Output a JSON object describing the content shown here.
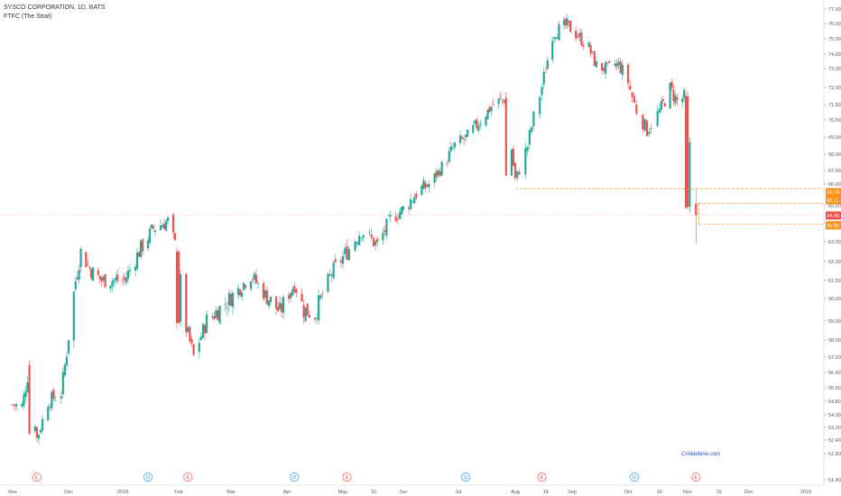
{
  "header": {
    "symbol_line": "SYSCO CORPORATION, 1D, BATS",
    "indicator_line": "FTFC (The Strat)"
  },
  "watermark": "Crinklebine.com",
  "colors": {
    "up": "#26a69a",
    "down": "#ef5350",
    "orange": "#f7931a",
    "pricetag": "#ef5350",
    "event_e": "#ef5350",
    "event_d": "#2196f3",
    "axis_text": "#555555"
  },
  "y_axis": {
    "labels": [
      "77.00",
      "76.00",
      "75.00",
      "74.00",
      "73.00",
      "72.00",
      "71.00",
      "70.00",
      "69.00",
      "68.00",
      "67.00",
      "66.00",
      "65.00",
      "64.00",
      "63.00",
      "62.00",
      "61.00",
      "60.00",
      "59.00",
      "58.00",
      "57.20",
      "56.40",
      "55.60",
      "54.80",
      "54.00",
      "53.20",
      "52.40",
      "51.60",
      "51.40"
    ]
  },
  "x_axis": {
    "labels": [
      "Nov",
      "Dec",
      "2018",
      "Feb",
      "Mar",
      "Apr",
      "May",
      "16",
      "Jun",
      "Jul",
      "Aug",
      "16",
      "Sep",
      "Oct",
      "16",
      "Nov",
      "16",
      "Dec",
      "2019"
    ]
  },
  "price_tags": [
    {
      "label": "65.78",
      "color": "#f7931a"
    },
    {
      "label": "65.11",
      "color": "#f7931a"
    },
    {
      "label": "64.45",
      "color": "#ef5350"
    },
    {
      "label": "63.92",
      "color": "#f7931a"
    }
  ],
  "events": [
    "E",
    "D",
    "E",
    "D",
    "E",
    "D",
    "E",
    "D",
    "E"
  ],
  "chart_data": {
    "type": "candlestick",
    "title": "SYSCO CORPORATION, 1D, BATS",
    "xlabel": "",
    "ylabel": "",
    "ylim": [
      51.4,
      77.5
    ],
    "x_range": [
      "2017-11-01",
      "2019-01-10"
    ],
    "grid": false,
    "levels": [
      {
        "label": "65.78",
        "value": 65.78
      },
      {
        "label": "65.11",
        "value": 65.11
      },
      {
        "label": "63.92",
        "value": 63.92
      }
    ],
    "last_price": 64.45,
    "close_path": [
      [
        "2017-11-01",
        54.6
      ],
      [
        "2017-11-06",
        54.5
      ],
      [
        "2017-11-10",
        56.8
      ],
      [
        "2017-11-14",
        52.5
      ],
      [
        "2017-11-20",
        54.8
      ],
      [
        "2017-11-27",
        55.3
      ],
      [
        "2017-12-01",
        58.2
      ],
      [
        "2017-12-05",
        61.0
      ],
      [
        "2017-12-08",
        62.5
      ],
      [
        "2017-12-14",
        61.5
      ],
      [
        "2017-12-20",
        61.0
      ],
      [
        "2018-01-02",
        61.0
      ],
      [
        "2018-01-10",
        62.5
      ],
      [
        "2018-01-18",
        63.7
      ],
      [
        "2018-01-26",
        64.1
      ],
      [
        "2018-01-31",
        62.5
      ],
      [
        "2018-02-05",
        58.6
      ],
      [
        "2018-02-09",
        57.2
      ],
      [
        "2018-02-16",
        59.0
      ],
      [
        "2018-02-26",
        59.8
      ],
      [
        "2018-03-05",
        60.5
      ],
      [
        "2018-03-12",
        61.3
      ],
      [
        "2018-03-20",
        60.2
      ],
      [
        "2018-03-28",
        59.4
      ],
      [
        "2018-04-05",
        60.8
      ],
      [
        "2018-04-10",
        59.5
      ],
      [
        "2018-04-16",
        59.3
      ],
      [
        "2018-04-25",
        61.4
      ],
      [
        "2018-05-03",
        62.5
      ],
      [
        "2018-05-10",
        63.6
      ],
      [
        "2018-05-18",
        62.8
      ],
      [
        "2018-05-25",
        64.2
      ],
      [
        "2018-06-01",
        64.8
      ],
      [
        "2018-06-08",
        65.6
      ],
      [
        "2018-06-15",
        66.0
      ],
      [
        "2018-06-22",
        67.2
      ],
      [
        "2018-06-29",
        68.5
      ],
      [
        "2018-07-06",
        69.0
      ],
      [
        "2018-07-13",
        70.0
      ],
      [
        "2018-07-20",
        71.0
      ],
      [
        "2018-07-27",
        71.4
      ],
      [
        "2018-08-01",
        66.3
      ],
      [
        "2018-08-07",
        68.5
      ],
      [
        "2018-08-10",
        70.2
      ],
      [
        "2018-08-15",
        72.5
      ],
      [
        "2018-08-20",
        75.3
      ],
      [
        "2018-08-24",
        75.6
      ],
      [
        "2018-08-29",
        75.9
      ],
      [
        "2018-09-04",
        75.2
      ],
      [
        "2018-09-10",
        74.4
      ],
      [
        "2018-09-14",
        73.2
      ],
      [
        "2018-09-20",
        73.0
      ],
      [
        "2018-09-26",
        73.3
      ],
      [
        "2018-10-01",
        72.3
      ],
      [
        "2018-10-05",
        70.6
      ],
      [
        "2018-10-10",
        69.4
      ],
      [
        "2018-10-16",
        70.6
      ],
      [
        "2018-10-22",
        71.9
      ],
      [
        "2018-10-26",
        71.2
      ],
      [
        "2018-10-31",
        71.5
      ],
      [
        "2018-11-05",
        64.6
      ]
    ]
  }
}
